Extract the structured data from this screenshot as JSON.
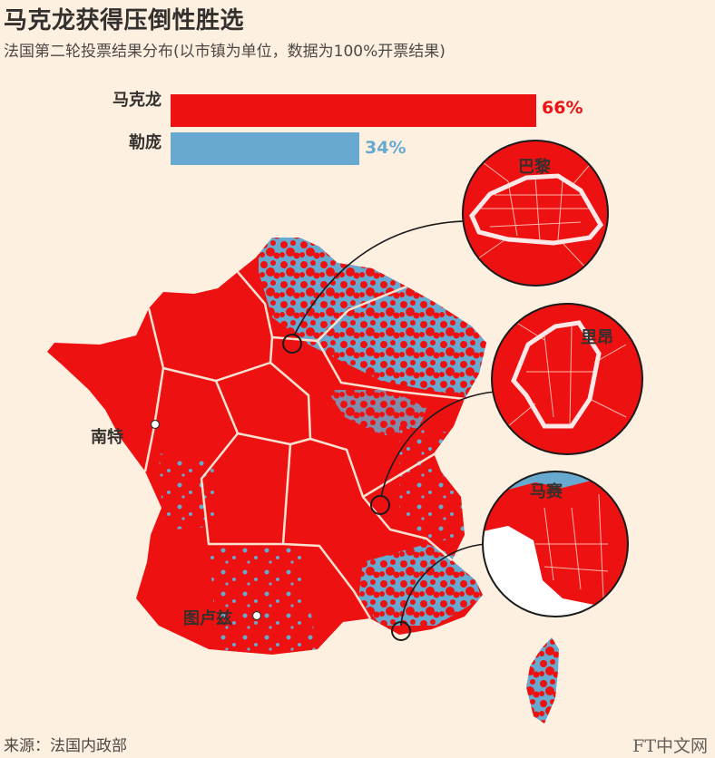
{
  "title": "马克龙获得压倒性胜选",
  "subtitle": "法国第二轮投票结果分布(以市镇为单位，数据为100%开票结果)",
  "chart_data": {
    "type": "bar",
    "categories": [
      "马克龙",
      "勒庞"
    ],
    "values": [
      66,
      34
    ],
    "value_labels": [
      "66%",
      "34%"
    ],
    "colors": [
      "#ee1111",
      "#68a9d0"
    ],
    "xlim": [
      0,
      100
    ]
  },
  "map": {
    "colors": {
      "macron": "#ee1111",
      "lepen": "#68a9d0",
      "border": "#fbe1d0"
    },
    "cities": {
      "nantes": "南特",
      "toulouse": "图卢兹"
    },
    "insets": {
      "paris": "巴黎",
      "lyon": "里昂",
      "marseille": "马赛"
    }
  },
  "source": "来源：法国内政部",
  "brand": "FT中文网"
}
